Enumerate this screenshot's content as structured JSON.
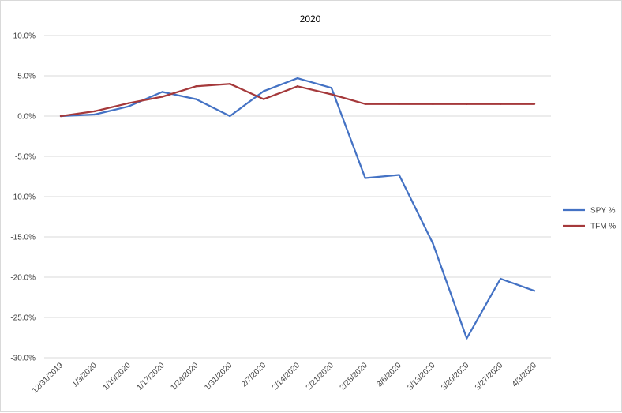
{
  "chart_data": {
    "type": "line",
    "title": "2020",
    "xlabel": "",
    "ylabel": "",
    "categories": [
      "12/31/2019",
      "1/3/2020",
      "1/10/2020",
      "1/17/2020",
      "1/24/2020",
      "1/31/2020",
      "2/7/2020",
      "2/14/2020",
      "2/21/2020",
      "2/28/2020",
      "3/6/2020",
      "3/13/2020",
      "3/20/2020",
      "3/27/2020",
      "4/3/2020"
    ],
    "ylim": [
      -30,
      10
    ],
    "yticks": [
      10,
      5,
      0,
      -5,
      -10,
      -15,
      -20,
      -25,
      -30
    ],
    "yticks_format": "percent_1dp",
    "grid": "horizontal",
    "legend": "right",
    "series": [
      {
        "name": "SPY %",
        "color": "#4472c4",
        "values": [
          0.0,
          0.2,
          1.2,
          3.0,
          2.1,
          0.0,
          3.1,
          4.7,
          3.5,
          -7.7,
          -7.3,
          -15.8,
          -27.6,
          -20.2,
          -21.7
        ]
      },
      {
        "name": "TFM %",
        "color": "#a5393b",
        "values": [
          0.0,
          0.6,
          1.6,
          2.4,
          3.7,
          4.0,
          2.1,
          3.7,
          2.7,
          1.5,
          1.5,
          1.5,
          1.5,
          1.5,
          1.5
        ]
      }
    ]
  }
}
